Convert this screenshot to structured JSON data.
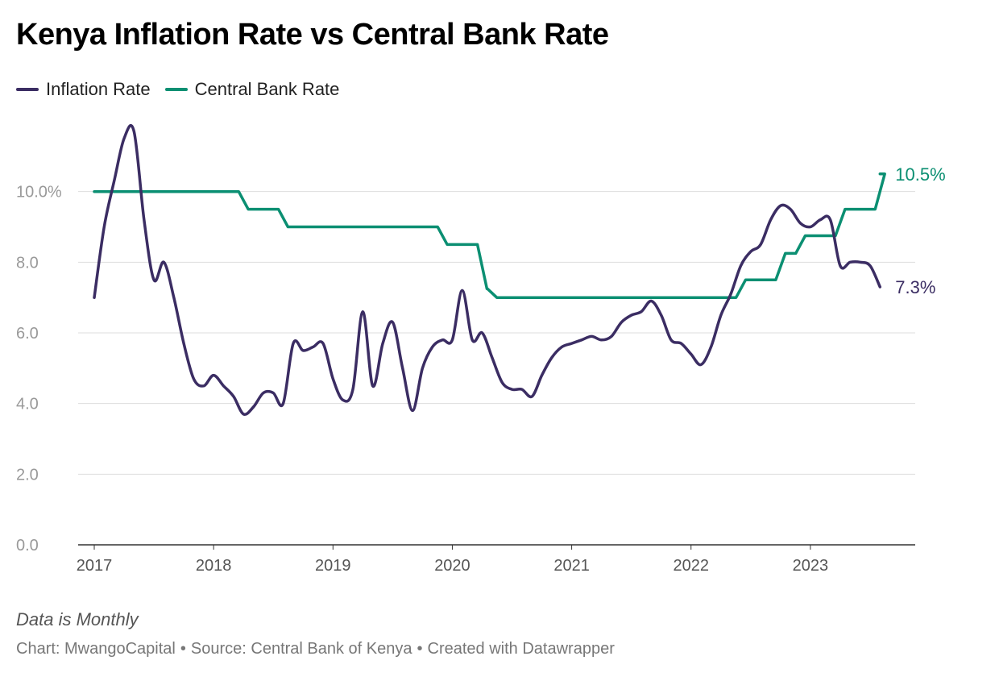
{
  "title": "Kenya Inflation Rate vs Central Bank Rate",
  "note": "Data is Monthly",
  "footer": {
    "chart_by": "Chart: MwangoCapital",
    "source": "Source: Central Bank of Kenya",
    "created_with": "Created with Datawrapper"
  },
  "colors": {
    "inflation": "#3b2d63",
    "cbr": "#0b8f72",
    "grid": "#dddddd",
    "tick": "#999999"
  },
  "chart_data": {
    "type": "line",
    "title": "Kenya Inflation Rate vs Central Bank Rate",
    "xlabel": "",
    "ylabel": "",
    "ylim": [
      0,
      12
    ],
    "xlim": [
      2017,
      2023.75
    ],
    "yticks": [
      {
        "value": 0,
        "label": "0.0"
      },
      {
        "value": 2,
        "label": "2.0"
      },
      {
        "value": 4,
        "label": "4.0"
      },
      {
        "value": 6,
        "label": "6.0"
      },
      {
        "value": 8,
        "label": "8.0"
      },
      {
        "value": 10,
        "label": "10.0%"
      }
    ],
    "xticks": [
      {
        "value": 2017,
        "label": "2017"
      },
      {
        "value": 2018,
        "label": "2018"
      },
      {
        "value": 2019,
        "label": "2019"
      },
      {
        "value": 2020,
        "label": "2020"
      },
      {
        "value": 2021,
        "label": "2021"
      },
      {
        "value": 2022,
        "label": "2022"
      },
      {
        "value": 2023,
        "label": "2023"
      }
    ],
    "grid": true,
    "legend": "top-left",
    "series": [
      {
        "name": "Inflation Rate",
        "end_label": "7.3%",
        "points": [
          [
            2017.0,
            7.0
          ],
          [
            2017.083,
            9.0
          ],
          [
            2017.167,
            10.3
          ],
          [
            2017.25,
            11.5
          ],
          [
            2017.333,
            11.7
          ],
          [
            2017.417,
            9.2
          ],
          [
            2017.5,
            7.5
          ],
          [
            2017.583,
            8.0
          ],
          [
            2017.667,
            7.0
          ],
          [
            2017.75,
            5.7
          ],
          [
            2017.833,
            4.7
          ],
          [
            2017.917,
            4.5
          ],
          [
            2018.0,
            4.8
          ],
          [
            2018.083,
            4.5
          ],
          [
            2018.167,
            4.2
          ],
          [
            2018.25,
            3.7
          ],
          [
            2018.333,
            3.9
          ],
          [
            2018.417,
            4.3
          ],
          [
            2018.5,
            4.3
          ],
          [
            2018.583,
            4.0
          ],
          [
            2018.667,
            5.7
          ],
          [
            2018.75,
            5.5
          ],
          [
            2018.833,
            5.6
          ],
          [
            2018.917,
            5.7
          ],
          [
            2019.0,
            4.7
          ],
          [
            2019.083,
            4.1
          ],
          [
            2019.167,
            4.4
          ],
          [
            2019.25,
            6.6
          ],
          [
            2019.333,
            4.5
          ],
          [
            2019.417,
            5.7
          ],
          [
            2019.5,
            6.3
          ],
          [
            2019.583,
            5.0
          ],
          [
            2019.667,
            3.8
          ],
          [
            2019.75,
            5.0
          ],
          [
            2019.833,
            5.6
          ],
          [
            2019.917,
            5.8
          ],
          [
            2020.0,
            5.8
          ],
          [
            2020.083,
            7.2
          ],
          [
            2020.167,
            5.8
          ],
          [
            2020.25,
            6.0
          ],
          [
            2020.333,
            5.3
          ],
          [
            2020.417,
            4.6
          ],
          [
            2020.5,
            4.4
          ],
          [
            2020.583,
            4.4
          ],
          [
            2020.667,
            4.2
          ],
          [
            2020.75,
            4.8
          ],
          [
            2020.833,
            5.3
          ],
          [
            2020.917,
            5.6
          ],
          [
            2021.0,
            5.7
          ],
          [
            2021.083,
            5.8
          ],
          [
            2021.167,
            5.9
          ],
          [
            2021.25,
            5.8
          ],
          [
            2021.333,
            5.9
          ],
          [
            2021.417,
            6.3
          ],
          [
            2021.5,
            6.5
          ],
          [
            2021.583,
            6.6
          ],
          [
            2021.667,
            6.9
          ],
          [
            2021.75,
            6.5
          ],
          [
            2021.833,
            5.8
          ],
          [
            2021.917,
            5.7
          ],
          [
            2022.0,
            5.4
          ],
          [
            2022.083,
            5.1
          ],
          [
            2022.167,
            5.6
          ],
          [
            2022.25,
            6.5
          ],
          [
            2022.333,
            7.1
          ],
          [
            2022.417,
            7.9
          ],
          [
            2022.5,
            8.3
          ],
          [
            2022.583,
            8.5
          ],
          [
            2022.667,
            9.2
          ],
          [
            2022.75,
            9.6
          ],
          [
            2022.833,
            9.5
          ],
          [
            2022.917,
            9.1
          ],
          [
            2023.0,
            9.0
          ],
          [
            2023.083,
            9.2
          ],
          [
            2023.167,
            9.2
          ],
          [
            2023.25,
            7.9
          ],
          [
            2023.333,
            8.0
          ],
          [
            2023.417,
            8.0
          ],
          [
            2023.5,
            7.9
          ],
          [
            2023.583,
            7.3
          ]
        ]
      },
      {
        "name": "Central Bank Rate",
        "end_label": "10.5%",
        "steps": [
          [
            2017.0,
            10.0
          ],
          [
            2018.25,
            9.5
          ],
          [
            2018.583,
            9.0
          ],
          [
            2019.917,
            8.5
          ],
          [
            2020.25,
            7.25
          ],
          [
            2020.333,
            7.0
          ],
          [
            2022.417,
            7.5
          ],
          [
            2022.75,
            8.25
          ],
          [
            2022.917,
            8.75
          ],
          [
            2023.25,
            9.5
          ],
          [
            2023.5,
            9.5
          ],
          [
            2023.583,
            10.5
          ]
        ]
      }
    ]
  }
}
